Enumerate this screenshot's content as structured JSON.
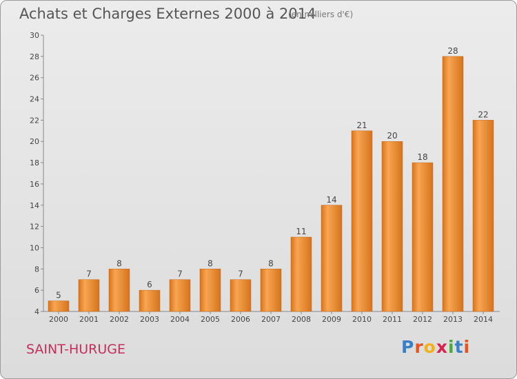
{
  "header": {
    "title": "Achats et Charges Externes 2000 à 2014",
    "subtitle": "(en milliers d'€)"
  },
  "footer": {
    "commune": "SAINT-HURUGE",
    "logo_text": "Proxiti",
    "logo_colors": [
      "#3b7fc4",
      "#e8531f",
      "#f2b01e",
      "#d6244f",
      "#4aa83c",
      "#3b7fc4",
      "#e8531f"
    ]
  },
  "chart_data": {
    "type": "bar",
    "categories": [
      "2000",
      "2001",
      "2002",
      "2003",
      "2004",
      "2005",
      "2006",
      "2007",
      "2008",
      "2009",
      "2010",
      "2011",
      "2012",
      "2013",
      "2014"
    ],
    "values": [
      5,
      7,
      8,
      6,
      7,
      8,
      7,
      8,
      11,
      14,
      21,
      20,
      18,
      28,
      22
    ],
    "title": "Achats et Charges Externes 2000 à 2014",
    "subtitle": "(en milliers d'€)",
    "ylim": [
      4,
      30
    ],
    "yticks": [
      4,
      6,
      8,
      10,
      12,
      14,
      16,
      18,
      20,
      22,
      24,
      26,
      28,
      30
    ],
    "grid": false,
    "bar_color_light": "#f8a552",
    "bar_color_dark": "#d6731c"
  }
}
